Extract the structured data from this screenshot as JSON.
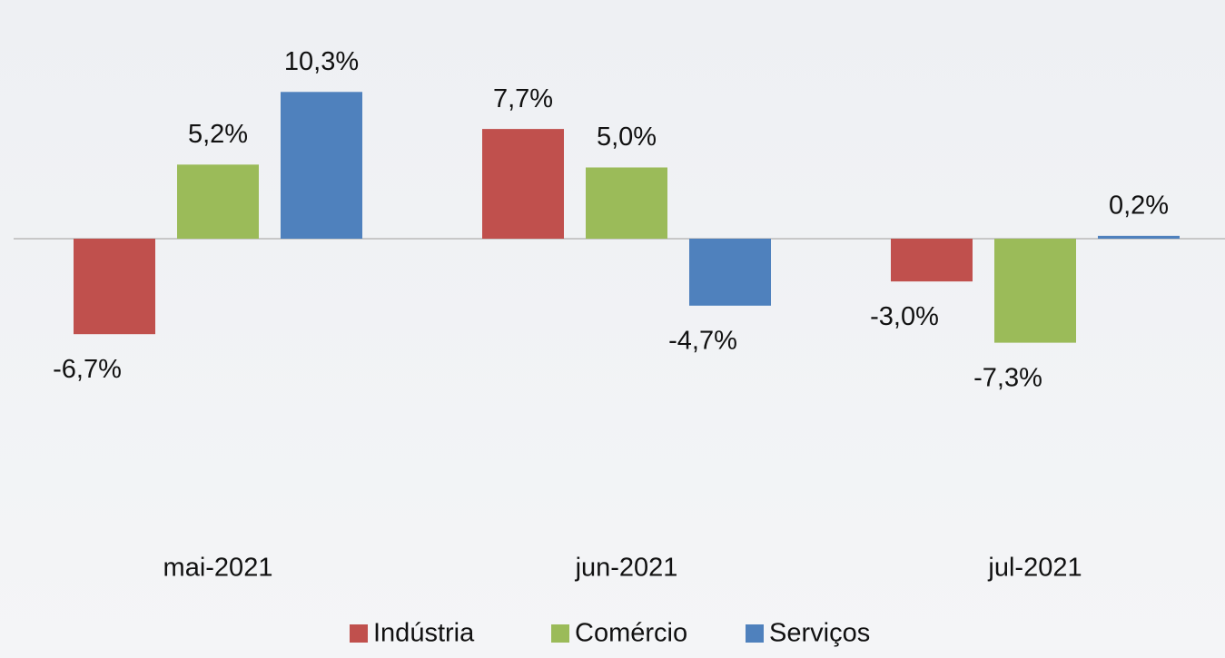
{
  "chart_data": {
    "type": "bar",
    "categories": [
      "mai-2021",
      "jun-2021",
      "jul-2021"
    ],
    "series": [
      {
        "name": "Indústria",
        "color": "#c0504d",
        "values": [
          -6.7,
          7.7,
          -3.0
        ],
        "value_labels": [
          "-6,7%",
          "7,7%",
          "-3,0%"
        ]
      },
      {
        "name": "Comércio",
        "color": "#9bbb59",
        "values": [
          5.2,
          5.0,
          -7.3
        ],
        "value_labels": [
          "5,2%",
          "5,0%",
          "-7,3%"
        ]
      },
      {
        "name": "Serviços",
        "color": "#4f81bd",
        "values": [
          10.3,
          -4.7,
          0.2
        ],
        "value_labels": [
          "10,3%",
          "-4,7%",
          "0,2%"
        ]
      }
    ],
    "ylim": [
      -20,
      15
    ],
    "legend": "bottom"
  }
}
